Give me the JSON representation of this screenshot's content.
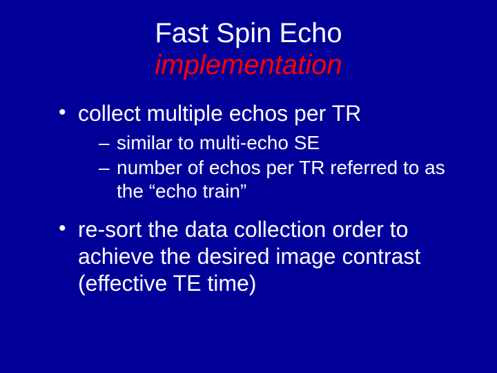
{
  "slide": {
    "background_color": "#000099",
    "text_color": "#ffffff",
    "subtitle_color": "#ff0000",
    "font_family": "Arial",
    "title_fontsize": 40,
    "body_lvl1_fontsize": 32,
    "body_lvl2_fontsize": 28
  },
  "title": {
    "main": "Fast Spin Echo",
    "sub": "implementation"
  },
  "bullets": [
    {
      "text": "collect multiple echos per TR",
      "sub": [
        "similar to multi-echo SE",
        "number of echos per TR referred to as the “echo train”"
      ]
    },
    {
      "text": "re-sort the data collection order to achieve the desired image contrast (effective TE time)",
      "sub": []
    }
  ]
}
